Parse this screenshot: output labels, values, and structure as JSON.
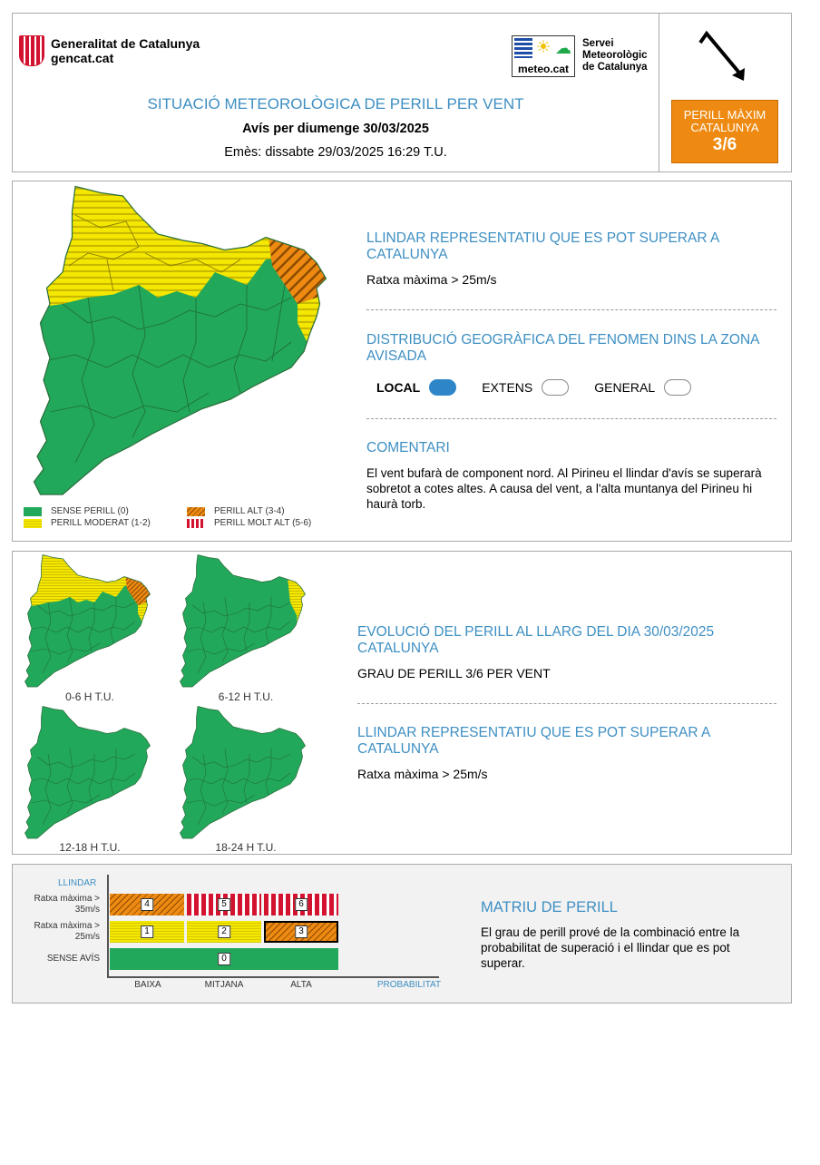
{
  "header": {
    "gencat_name": "Generalitat de Catalunya",
    "gencat_url": "gencat.cat",
    "meteo_box_label": "meteo.cat",
    "meteo_line1": "Servei",
    "meteo_line2": "Meteorològic",
    "meteo_line3": "de Catalunya",
    "title": "SITUACIÓ METEOROLÒGICA DE PERILL PER VENT",
    "avis": "Avís per diumenge 30/03/2025",
    "emes": "Emès: dissabte 29/03/2025 16:29 T.U.",
    "wind_direction_icon": "wind-arrow-icon",
    "perill_max_line1": "PERILL MÀXIM",
    "perill_max_line2": "CATALUNYA",
    "perill_max_level": "3/6",
    "perill_max_color": "#ee8a12"
  },
  "main": {
    "threshold_title": "LLINDAR REPRESENTATIU QUE ES POT SUPERAR A CATALUNYA",
    "threshold_value": "Ratxa màxima > 25m/s",
    "distribution_title": "DISTRIBUCIÓ GEOGRÀFICA DEL FENOMEN DINS LA ZONA AVISADA",
    "distribution_options": [
      {
        "label": "LOCAL",
        "selected": true
      },
      {
        "label": "EXTENS",
        "selected": false
      },
      {
        "label": "GENERAL",
        "selected": false
      }
    ],
    "comment_title": "COMENTARI",
    "comment_body": "El vent bufarà de component nord. Al Pirineu el llindar d'avís se superarà sobretot a cotes altes. A causa del vent, a l'alta muntanya del Pirineu hi haurà torb.",
    "legend": {
      "sense": "SENSE PERILL (0)",
      "moderat": "PERILL MODERAT (1-2)",
      "alt": "PERILL ALT (3-4)",
      "molt_alt": "PERILL MOLT ALT (5-6)"
    },
    "colors": {
      "sense": "#22a85a",
      "moderat": "#f4e800",
      "alt": "#ee8a12",
      "molt_alt": "#d2122e"
    }
  },
  "evolution": {
    "title": "EVOLUCIÓ DEL PERILL AL LLARG DEL DIA 30/03/2025 CATALUNYA",
    "grau": "GRAU DE PERILL 3/6 PER VENT",
    "threshold_title": "LLINDAR REPRESENTATIU QUE ES POT SUPERAR A CATALUNYA",
    "threshold_value": "Ratxa màxima > 25m/s",
    "periods": [
      {
        "label": "0-6 H T.U.",
        "pyrenees": "moderat",
        "northeast": "alt"
      },
      {
        "label": "6-12 H T.U.",
        "pyrenees": "sense",
        "northeast": "moderat"
      },
      {
        "label": "12-18 H T.U.",
        "pyrenees": "sense",
        "northeast": "sense"
      },
      {
        "label": "18-24 H T.U.",
        "pyrenees": "sense",
        "northeast": "sense"
      }
    ]
  },
  "matrix": {
    "title": "MATRIU DE PERILL",
    "body": "El grau de perill prové de la combinació entre la probabilitat de superació i el llindar que es pot superar.",
    "y_title": "LLINDAR",
    "rows": [
      "Ratxa màxima > 35m/s",
      "Ratxa màxima > 25m/s",
      "SENSE AVÍS"
    ],
    "x_labels": [
      "BAIXA",
      "MITJANA",
      "ALTA"
    ],
    "x_title": "PROBABILITAT",
    "cells": {
      "r1": [
        "4",
        "5",
        "6"
      ],
      "r2": [
        "1",
        "2",
        "3"
      ],
      "r3": "0"
    },
    "active_level": "3"
  }
}
